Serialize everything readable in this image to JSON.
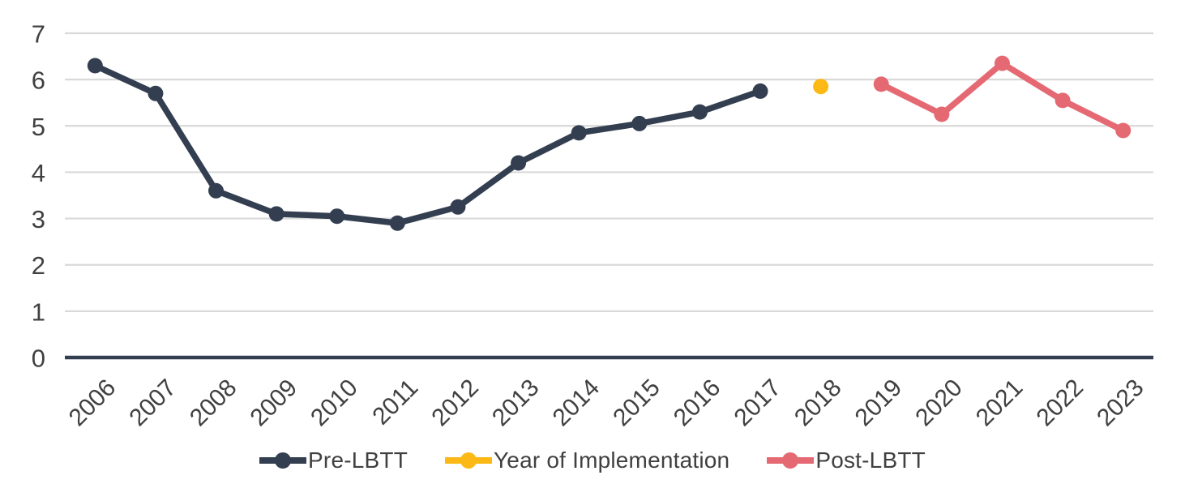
{
  "chart_data": {
    "type": "line",
    "title": "",
    "xlabel": "",
    "ylabel": "",
    "categories": [
      "2006",
      "2007",
      "2008",
      "2009",
      "2010",
      "2011",
      "2012",
      "2013",
      "2014",
      "2015",
      "2016",
      "2017",
      "2018",
      "2019",
      "2020",
      "2021",
      "2022",
      "2023"
    ],
    "ylim": [
      0,
      7
    ],
    "yticks": [
      0,
      1,
      2,
      3,
      4,
      5,
      6,
      7
    ],
    "grid": true,
    "legend_position": "bottom",
    "axis_color": "#333F50",
    "gridline_color": "#D9D9D9",
    "tick_label_color": "#404040",
    "series": [
      {
        "name": "Pre-LBTT",
        "color": "#333F50",
        "values": [
          6.3,
          5.7,
          3.6,
          3.1,
          3.05,
          2.9,
          3.25,
          4.2,
          4.85,
          5.05,
          5.3,
          5.75,
          null,
          null,
          null,
          null,
          null,
          null
        ]
      },
      {
        "name": "Year of Implementation",
        "color": "#FCB814",
        "values": [
          null,
          null,
          null,
          null,
          null,
          null,
          null,
          null,
          null,
          null,
          null,
          null,
          5.85,
          null,
          null,
          null,
          null,
          null
        ]
      },
      {
        "name": "Post-LBTT",
        "color": "#E56973",
        "values": [
          null,
          null,
          null,
          null,
          null,
          null,
          null,
          null,
          null,
          null,
          null,
          null,
          null,
          5.9,
          5.25,
          6.35,
          5.55,
          4.9
        ]
      }
    ]
  }
}
